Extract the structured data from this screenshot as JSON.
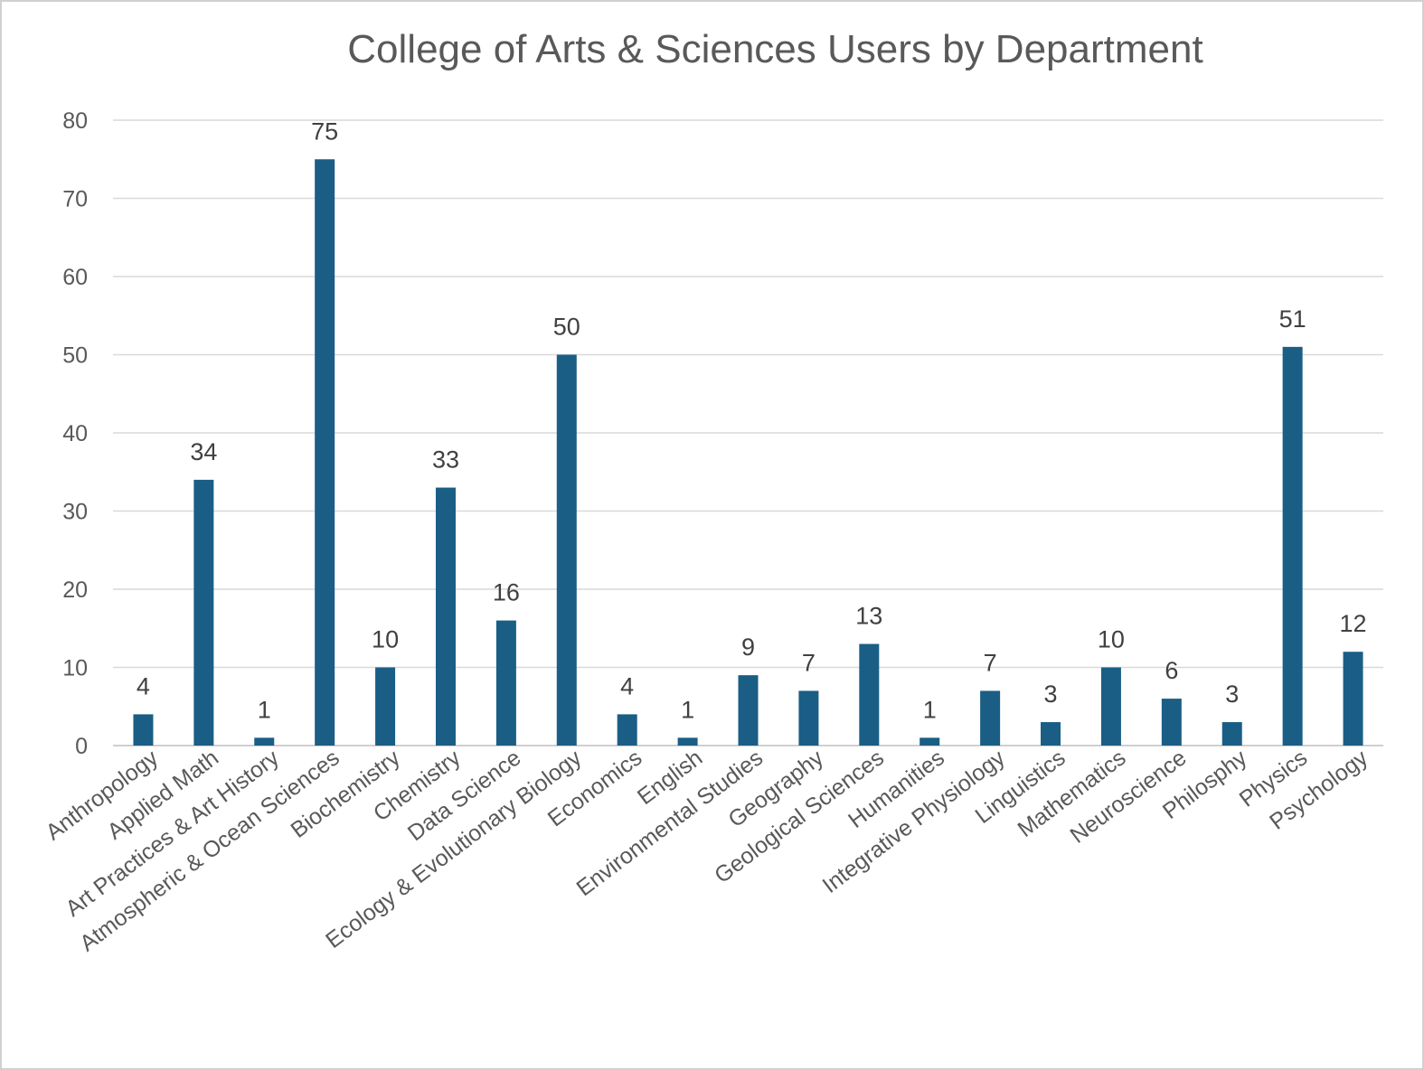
{
  "chart_data": {
    "type": "bar",
    "title": "College of Arts & Sciences Users by Department",
    "xlabel": "",
    "ylabel": "",
    "ylim": [
      0,
      80
    ],
    "yticks": [
      0,
      10,
      20,
      30,
      40,
      50,
      60,
      70,
      80
    ],
    "grid": true,
    "legend": "none",
    "bar_color": "#1a5e86",
    "categories": [
      "Anthropology",
      "Applied Math",
      "Art Practices & Art History",
      "Atmospheric & Ocean Sciences",
      "Biochemistry",
      "Chemistry",
      "Data Science",
      "Ecology & Evolutionary Biology",
      "Economics",
      "English",
      "Environmental Studies",
      "Geography",
      "Geological Sciences",
      "Humanities",
      "Integrative Physiology",
      "Linguistics",
      "Mathematics",
      "Neuroscience",
      "Philosphy",
      "Physics",
      "Psychology"
    ],
    "values": [
      4,
      34,
      1,
      75,
      10,
      33,
      16,
      50,
      4,
      1,
      9,
      7,
      13,
      1,
      7,
      3,
      10,
      6,
      3,
      51,
      12
    ]
  }
}
